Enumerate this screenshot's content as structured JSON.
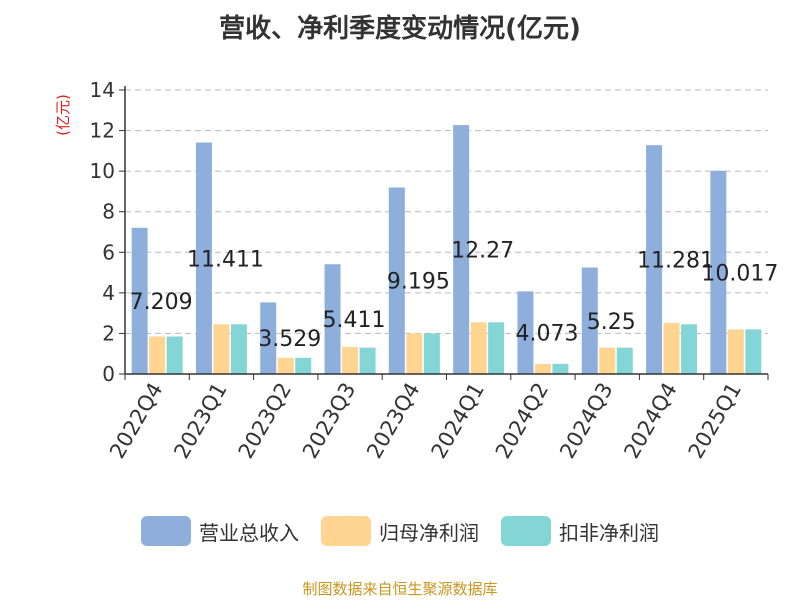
{
  "source_note": "制图数据来自恒生聚源数据库",
  "colors": {
    "revenue": "#8eafdc",
    "net_profit": "#ffd591",
    "deducted_profit": "#84d6d6",
    "ylabel": "#e02020"
  },
  "chart_data": {
    "type": "bar",
    "title": "营收、净利季度变动情况(亿元)",
    "ylabel": "(亿元)",
    "ylim": [
      0,
      14
    ],
    "yticks": [
      0,
      2,
      4,
      6,
      8,
      10,
      12,
      14
    ],
    "grid": true,
    "legend_position": "bottom",
    "categories": [
      "2022Q4",
      "2023Q1",
      "2023Q2",
      "2023Q3",
      "2023Q4",
      "2024Q1",
      "2024Q2",
      "2024Q3",
      "2024Q4",
      "2025Q1"
    ],
    "series": [
      {
        "name": "营业总收入",
        "values": [
          7.209,
          11.411,
          3.529,
          5.411,
          9.195,
          12.27,
          4.073,
          5.25,
          11.281,
          10.017
        ],
        "labels": [
          "7.209",
          "11.411",
          "3.529",
          "5.411",
          "9.195",
          "12.27",
          "4.073",
          "5.25",
          "11.281",
          "10.017"
        ]
      },
      {
        "name": "归母净利润",
        "values": [
          1.85,
          2.45,
          0.8,
          1.33,
          2.0,
          2.55,
          0.5,
          1.3,
          2.52,
          2.2
        ]
      },
      {
        "name": "扣非净利润",
        "values": [
          1.85,
          2.45,
          0.8,
          1.3,
          2.0,
          2.55,
          0.5,
          1.3,
          2.45,
          2.2
        ]
      }
    ]
  }
}
